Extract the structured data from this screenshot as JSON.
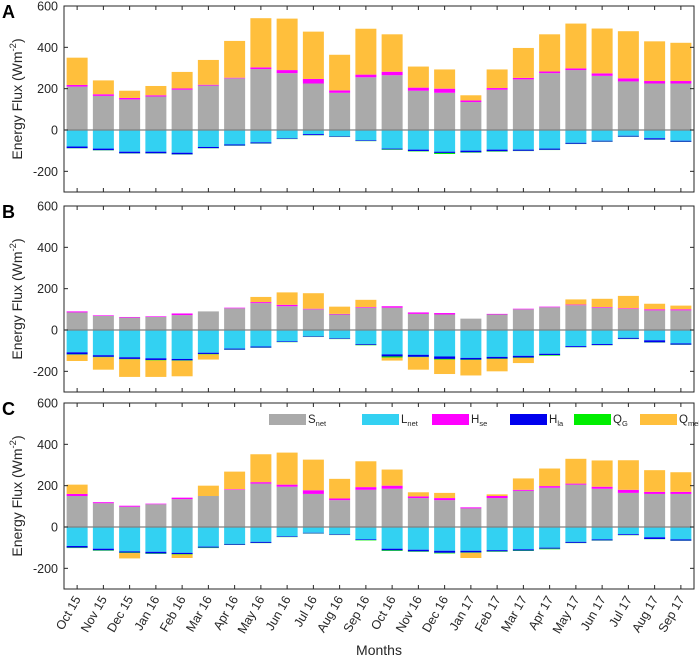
{
  "figure": {
    "x_axis_label": "Months",
    "y_axis_label": "Energy Flux (Wm",
    "y_axis_label_sup": "-2",
    "y_axis_label_close": ")"
  },
  "legend": [
    {
      "key": "Snet",
      "base": "S",
      "sub": "net",
      "color": "#aaaaaa"
    },
    {
      "key": "Lnet",
      "base": "L",
      "sub": "net",
      "color": "#33d1f2"
    },
    {
      "key": "Hse",
      "base": "H",
      "sub": "se",
      "color": "#ff00ff"
    },
    {
      "key": "Hla",
      "base": "H",
      "sub": "la",
      "color": "#0000ee"
    },
    {
      "key": "QG",
      "base": "Q",
      "sub": "G",
      "color": "#00ee00"
    },
    {
      "key": "Qmelt",
      "base": "Q",
      "sub": "melt",
      "color": "#ffbf3c"
    }
  ],
  "chart_data": [
    {
      "type": "bar",
      "stacked": true,
      "panel_label": "A",
      "categories": [
        "Oct 15",
        "Nov 15",
        "Dec 15",
        "Jan 16",
        "Feb 16",
        "Mar 16",
        "Apr 16",
        "May 16",
        "Jun 16",
        "Jul 16",
        "Aug 16",
        "Sep 16",
        "Oct 16",
        "Nov 16",
        "Dec 16",
        "Jan 17",
        "Feb 17",
        "Mar 17",
        "Apr 17",
        "May 17",
        "Jun 17",
        "Jul 17",
        "Aug 17",
        "Sep 17"
      ],
      "ylim": [
        -300,
        600
      ],
      "yticks": [
        -200,
        0,
        200,
        400,
        600
      ],
      "series": [
        {
          "name": "Snet",
          "values": [
            210,
            165,
            148,
            162,
            195,
            215,
            250,
            295,
            275,
            225,
            180,
            255,
            265,
            190,
            180,
            135,
            195,
            245,
            275,
            290,
            262,
            235,
            225,
            225
          ]
        },
        {
          "name": "Hse",
          "values": [
            8,
            8,
            7,
            6,
            6,
            4,
            3,
            8,
            15,
            22,
            12,
            13,
            17,
            15,
            20,
            8,
            8,
            7,
            8,
            8,
            12,
            15,
            12,
            12
          ]
        },
        {
          "name": "Qmelt",
          "values": [
            132,
            67,
            35,
            45,
            80,
            120,
            178,
            238,
            249,
            229,
            172,
            222,
            181,
            102,
            93,
            25,
            90,
            145,
            180,
            217,
            217,
            228,
            192,
            185
          ]
        },
        {
          "name": "Lnet",
          "values": [
            -80,
            -90,
            -105,
            -105,
            -110,
            -82,
            -70,
            -60,
            -40,
            -20,
            -30,
            -50,
            -90,
            -95,
            -105,
            -100,
            -95,
            -95,
            -90,
            -62,
            -52,
            -28,
            -40,
            -52
          ]
        },
        {
          "name": "Hla",
          "values": [
            -8,
            -8,
            -8,
            -8,
            -8,
            -6,
            -5,
            -5,
            -3,
            -5,
            -3,
            -3,
            -4,
            -7,
            -6,
            -8,
            -8,
            -6,
            -6,
            -5,
            -4,
            -4,
            -6,
            -5
          ]
        },
        {
          "name": "QG",
          "values": [
            -1,
            -1,
            -1,
            -1,
            -1,
            -1,
            -1,
            -1,
            -1,
            -1,
            -1,
            -1,
            -2,
            -2,
            -5,
            -2,
            -2,
            -1,
            -1,
            -1,
            -1,
            -1,
            -1,
            -1
          ]
        }
      ]
    },
    {
      "type": "bar",
      "stacked": true,
      "panel_label": "B",
      "categories": [
        "Oct 15",
        "Nov 15",
        "Dec 15",
        "Jan 16",
        "Feb 16",
        "Mar 16",
        "Apr 16",
        "May 16",
        "Jun 16",
        "Jul 16",
        "Aug 16",
        "Sep 16",
        "Oct 16",
        "Nov 16",
        "Dec 16",
        "Jan 17",
        "Feb 17",
        "Mar 17",
        "Apr 17",
        "May 17",
        "Jun 17",
        "Jul 17",
        "Aug 17",
        "Sep 17"
      ],
      "ylim": [
        -300,
        600
      ],
      "yticks": [
        -200,
        0,
        200,
        400,
        600
      ],
      "series": [
        {
          "name": "Snet",
          "values": [
            85,
            68,
            60,
            63,
            72,
            90,
            105,
            130,
            115,
            100,
            75,
            108,
            108,
            78,
            75,
            55,
            75,
            100,
            110,
            120,
            108,
            102,
            95,
            95
          ]
        },
        {
          "name": "Hse",
          "values": [
            5,
            3,
            3,
            3,
            8,
            0,
            3,
            5,
            7,
            3,
            3,
            3,
            7,
            7,
            7,
            0,
            3,
            3,
            3,
            3,
            3,
            3,
            5,
            5
          ]
        },
        {
          "name": "Qmelt",
          "values": [
            0,
            0,
            0,
            0,
            0,
            0,
            0,
            25,
            60,
            75,
            35,
            35,
            0,
            0,
            0,
            0,
            0,
            0,
            0,
            25,
            40,
            60,
            27,
            18
          ]
        },
        {
          "name": "Lnet",
          "values": [
            -108,
            -122,
            -132,
            -137,
            -140,
            -110,
            -90,
            -80,
            -55,
            -30,
            -40,
            -68,
            -118,
            -120,
            -128,
            -135,
            -130,
            -125,
            -115,
            -78,
            -68,
            -38,
            -50,
            -65
          ]
        },
        {
          "name": "Hla",
          "values": [
            -10,
            -8,
            -8,
            -8,
            -7,
            -6,
            -5,
            -5,
            -3,
            -3,
            -3,
            -4,
            -10,
            -10,
            -12,
            -8,
            -8,
            -8,
            -6,
            -5,
            -5,
            -5,
            -10,
            -6
          ]
        },
        {
          "name": "QG",
          "values": [
            -2,
            -2,
            -2,
            -2,
            -2,
            -2,
            -1,
            -1,
            -1,
            -1,
            -1,
            -2,
            -5,
            -2,
            -3,
            -2,
            -2,
            -2,
            -3,
            -1,
            -1,
            -1,
            -1,
            -1
          ]
        },
        {
          "name": "Qmelt_neg",
          "values": [
            -30,
            -60,
            -85,
            -80,
            -75,
            -25,
            0,
            0,
            0,
            0,
            0,
            0,
            -15,
            -60,
            -70,
            -75,
            -60,
            -25,
            0,
            0,
            0,
            0,
            0,
            0
          ]
        }
      ]
    },
    {
      "type": "bar",
      "stacked": true,
      "panel_label": "C",
      "categories": [
        "Oct 15",
        "Nov 15",
        "Dec 15",
        "Jan 16",
        "Feb 16",
        "Mar 16",
        "Apr 16",
        "May 16",
        "Jun 16",
        "Jul 16",
        "Aug 16",
        "Sep 16",
        "Oct 16",
        "Nov 16",
        "Dec 16",
        "Jan 17",
        "Feb 17",
        "Mar 17",
        "Apr 17",
        "May 17",
        "Jun 17",
        "Jul 17",
        "Aug 17",
        "Sep 17"
      ],
      "ylim": [
        -300,
        600
      ],
      "yticks": [
        -200,
        0,
        200,
        400,
        600
      ],
      "series": [
        {
          "name": "Snet",
          "values": [
            150,
            115,
            98,
            110,
            135,
            150,
            180,
            210,
            195,
            160,
            130,
            180,
            185,
            140,
            130,
            90,
            140,
            175,
            190,
            205,
            185,
            165,
            160,
            160
          ]
        },
        {
          "name": "Hse",
          "values": [
            10,
            5,
            5,
            3,
            7,
            0,
            3,
            7,
            10,
            18,
            8,
            13,
            15,
            8,
            10,
            5,
            10,
            5,
            8,
            5,
            10,
            15,
            10,
            10
          ]
        },
        {
          "name": "Qmelt",
          "values": [
            45,
            0,
            0,
            0,
            0,
            50,
            85,
            135,
            155,
            148,
            95,
            125,
            78,
            20,
            25,
            0,
            8,
            55,
            85,
            120,
            127,
            143,
            105,
            95
          ]
        },
        {
          "name": "Lnet",
          "values": [
            -92,
            -105,
            -118,
            -120,
            -125,
            -95,
            -82,
            -72,
            -45,
            -28,
            -35,
            -60,
            -105,
            -110,
            -115,
            -115,
            -112,
            -108,
            -100,
            -72,
            -60,
            -35,
            -50,
            -60
          ]
        },
        {
          "name": "Hla",
          "values": [
            -8,
            -8,
            -6,
            -8,
            -6,
            -5,
            -4,
            -5,
            -3,
            -3,
            -3,
            -3,
            -8,
            -8,
            -10,
            -8,
            -6,
            -6,
            -5,
            -5,
            -5,
            -4,
            -8,
            -6
          ]
        },
        {
          "name": "QG",
          "values": [
            -2,
            -2,
            -2,
            -2,
            -2,
            -2,
            -1,
            -1,
            -1,
            -1,
            -1,
            -2,
            -3,
            -2,
            -3,
            -2,
            -2,
            -2,
            -3,
            -1,
            -1,
            -1,
            -1,
            -1
          ]
        },
        {
          "name": "Qmelt_neg",
          "values": [
            0,
            0,
            -26,
            0,
            -17,
            0,
            0,
            0,
            0,
            0,
            0,
            0,
            0,
            0,
            0,
            -25,
            0,
            0,
            0,
            0,
            0,
            0,
            0,
            0
          ]
        }
      ]
    }
  ]
}
